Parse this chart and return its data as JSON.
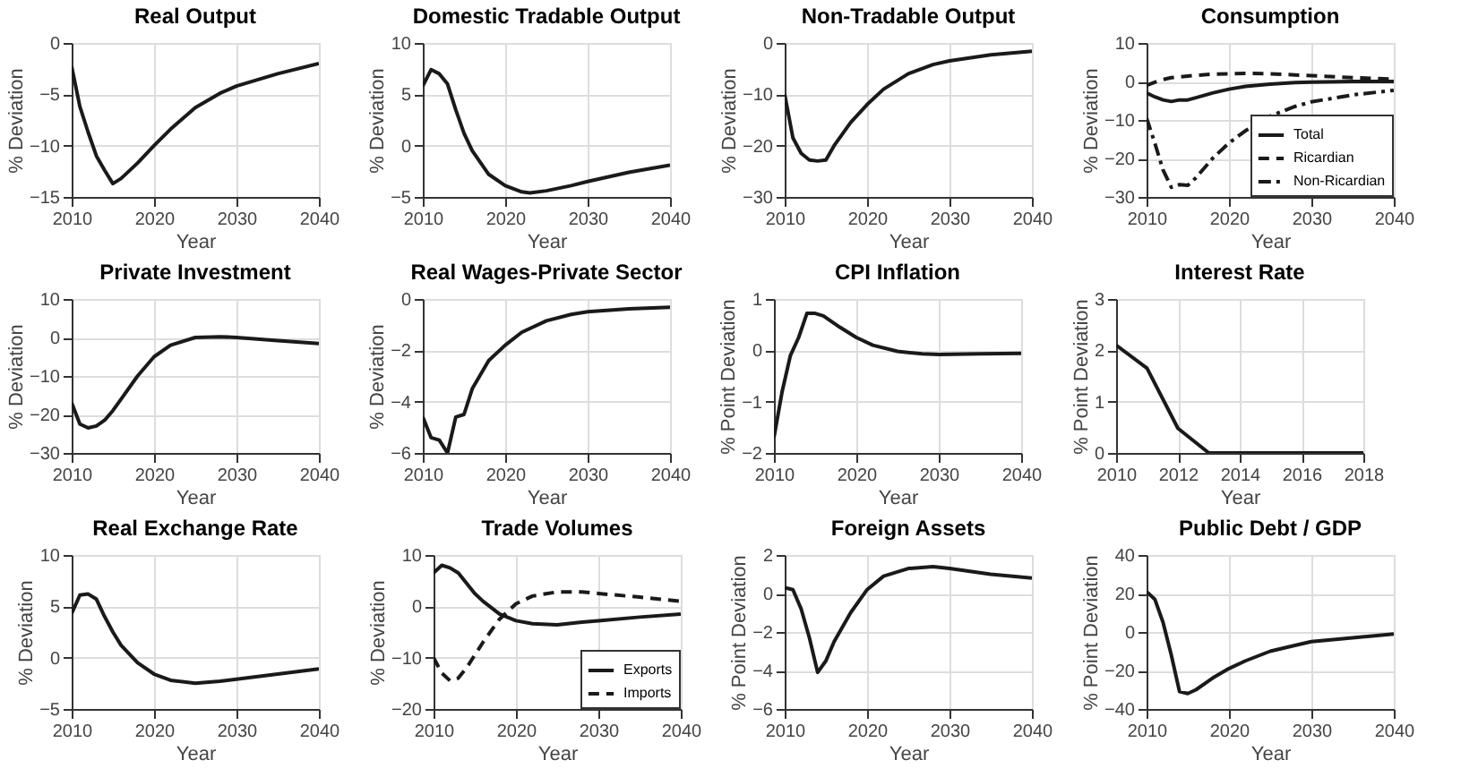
{
  "chart_data": [
    {
      "type": "line",
      "title": "Real Output",
      "xlabel": "Year",
      "ylabel": "% Deviation",
      "x": [
        2010,
        2011,
        2012,
        2013,
        2014,
        2015,
        2016,
        2018,
        2020,
        2022,
        2025,
        2028,
        2030,
        2035,
        2040
      ],
      "xlim": [
        2010,
        2040
      ],
      "xticks": [
        2010,
        2020,
        2030,
        2040
      ],
      "ylim": [
        -15,
        0
      ],
      "yticks": [
        -15,
        -10,
        -5,
        0
      ],
      "grid": true,
      "legend": false,
      "series": [
        {
          "color": "#1a1a1a",
          "line_style": "solid",
          "values": [
            -2.3,
            -6.2,
            -8.7,
            -11,
            -12.4,
            -13.7,
            -13.2,
            -11.7,
            -10,
            -8.4,
            -6.3,
            -4.9,
            -4.2,
            -3,
            -2
          ]
        }
      ]
    },
    {
      "type": "line",
      "title": "Domestic Tradable Output",
      "xlabel": "Year",
      "ylabel": "% Deviation",
      "x": [
        2010,
        2011,
        2012,
        2013,
        2014,
        2015,
        2016,
        2018,
        2020,
        2022,
        2023,
        2025,
        2028,
        2030,
        2035,
        2040
      ],
      "xlim": [
        2010,
        2040
      ],
      "xticks": [
        2010,
        2020,
        2030,
        2040
      ],
      "ylim": [
        -5,
        10
      ],
      "yticks": [
        -5,
        0,
        5,
        10
      ],
      "grid": true,
      "legend": false,
      "series": [
        {
          "color": "#1a1a1a",
          "line_style": "solid",
          "values": [
            5.8,
            7.4,
            7,
            6,
            3.5,
            1.2,
            -0.5,
            -2.8,
            -3.9,
            -4.5,
            -4.6,
            -4.4,
            -3.9,
            -3.5,
            -2.6,
            -1.9
          ]
        }
      ]
    },
    {
      "type": "line",
      "title": "Non-Tradable Output",
      "xlabel": "Year",
      "ylabel": "% Deviation",
      "x": [
        2010,
        2011,
        2012,
        2013,
        2014,
        2015,
        2016,
        2018,
        2020,
        2022,
        2025,
        2028,
        2030,
        2035,
        2040
      ],
      "xlim": [
        2010,
        2040
      ],
      "xticks": [
        2010,
        2020,
        2030,
        2040
      ],
      "ylim": [
        -30,
        0
      ],
      "yticks": [
        -30,
        -20,
        -10,
        0
      ],
      "grid": true,
      "legend": false,
      "series": [
        {
          "color": "#1a1a1a",
          "line_style": "solid",
          "values": [
            -10,
            -18.5,
            -21.5,
            -22.8,
            -23,
            -22.8,
            -20,
            -15.5,
            -12,
            -9,
            -6,
            -4.2,
            -3.5,
            -2.3,
            -1.6
          ]
        }
      ]
    },
    {
      "type": "line",
      "title": "Consumption",
      "xlabel": "Year",
      "ylabel": "% Deviation",
      "x": [
        2010,
        2011,
        2012,
        2013,
        2014,
        2015,
        2016,
        2018,
        2020,
        2022,
        2025,
        2028,
        2030,
        2035,
        2040
      ],
      "xlim": [
        2010,
        2040
      ],
      "xticks": [
        2010,
        2020,
        2030,
        2040
      ],
      "ylim": [
        -30,
        10
      ],
      "yticks": [
        -30,
        -20,
        -10,
        0,
        10
      ],
      "grid": true,
      "legend": "bottom right",
      "series": [
        {
          "name": "Total",
          "color": "#1a1a1a",
          "line_style": "solid",
          "values": [
            -3,
            -4,
            -4.8,
            -5.2,
            -4.8,
            -4.8,
            -4.2,
            -3,
            -2,
            -1.3,
            -0.7,
            -0.3,
            -0.2,
            0,
            0
          ]
        },
        {
          "name": "Ricardian",
          "color": "#1a1a1a",
          "line_style": "dashed",
          "values": [
            -1,
            -0.2,
            0.5,
            1,
            1.2,
            1.4,
            1.6,
            1.9,
            2,
            2.1,
            2,
            1.7,
            1.5,
            1,
            0.6
          ]
        },
        {
          "name": "Non-Ricardian",
          "color": "#1a1a1a",
          "line_style": "dashdot",
          "values": [
            -9.5,
            -16,
            -23,
            -27.5,
            -26.8,
            -27,
            -25,
            -20,
            -16,
            -12.8,
            -9,
            -6.5,
            -5.3,
            -3.5,
            -2.3
          ]
        }
      ]
    },
    {
      "type": "line",
      "title": "Private Investment",
      "xlabel": "Year",
      "ylabel": "% Deviation",
      "x": [
        2010,
        2011,
        2012,
        2013,
        2014,
        2015,
        2016,
        2018,
        2020,
        2022,
        2025,
        2028,
        2030,
        2035,
        2040
      ],
      "xlim": [
        2010,
        2040
      ],
      "xticks": [
        2010,
        2020,
        2030,
        2040
      ],
      "ylim": [
        -30,
        10
      ],
      "yticks": [
        -30,
        -20,
        -10,
        0,
        10
      ],
      "grid": true,
      "legend": false,
      "series": [
        {
          "color": "#1a1a1a",
          "line_style": "solid",
          "values": [
            -17,
            -22.5,
            -23.5,
            -23,
            -21.5,
            -19,
            -16,
            -10,
            -5,
            -2,
            0,
            0.2,
            0,
            -0.8,
            -1.6
          ]
        }
      ]
    },
    {
      "type": "line",
      "title": "Real Wages-Private Sector",
      "xlabel": "Year",
      "ylabel": "% Deviation",
      "x": [
        2010,
        2011,
        2012,
        2013,
        2014,
        2015,
        2016,
        2018,
        2020,
        2022,
        2025,
        2028,
        2030,
        2035,
        2040
      ],
      "xlim": [
        2010,
        2040
      ],
      "xticks": [
        2010,
        2020,
        2030,
        2040
      ],
      "ylim": [
        -6,
        0
      ],
      "yticks": [
        -6,
        -4,
        -2,
        0
      ],
      "grid": true,
      "legend": false,
      "series": [
        {
          "color": "#1a1a1a",
          "line_style": "solid",
          "values": [
            -4.6,
            -5.4,
            -5.5,
            -6,
            -4.6,
            -4.5,
            -3.5,
            -2.4,
            -1.8,
            -1.3,
            -0.85,
            -0.6,
            -0.5,
            -0.38,
            -0.32
          ]
        }
      ]
    },
    {
      "type": "line",
      "title": "CPI Inflation",
      "xlabel": "Year",
      "ylabel": "% Point Deviation",
      "x": [
        2010,
        2011,
        2012,
        2013,
        2014,
        2015,
        2016,
        2018,
        2020,
        2022,
        2025,
        2028,
        2030,
        2035,
        2040
      ],
      "xlim": [
        2010,
        2040
      ],
      "xticks": [
        2010,
        2020,
        2030,
        2040
      ],
      "ylim": [
        -2,
        1
      ],
      "yticks": [
        -2,
        -1,
        0,
        1
      ],
      "grid": true,
      "legend": false,
      "series": [
        {
          "color": "#1a1a1a",
          "line_style": "solid",
          "values": [
            -1.7,
            -0.8,
            -0.1,
            0.25,
            0.72,
            0.72,
            0.67,
            0.45,
            0.25,
            0.1,
            -0.02,
            -0.07,
            -0.08,
            -0.07,
            -0.06
          ]
        }
      ]
    },
    {
      "type": "line",
      "title": "Interest Rate",
      "xlabel": "Year",
      "ylabel": "% Point Deviation",
      "x": [
        2010,
        2011,
        2012,
        2013,
        2014,
        2016,
        2018
      ],
      "xlim": [
        2010,
        2018
      ],
      "xticks": [
        2010,
        2012,
        2014,
        2016,
        2018
      ],
      "ylim": [
        0,
        3
      ],
      "yticks": [
        0,
        1,
        2,
        3
      ],
      "grid": true,
      "legend": false,
      "series": [
        {
          "color": "#1a1a1a",
          "line_style": "solid",
          "values": [
            2.1,
            1.65,
            0.48,
            0,
            0,
            0,
            0
          ]
        }
      ]
    },
    {
      "type": "line",
      "title": "Real Exchange Rate",
      "xlabel": "Year",
      "ylabel": "% Deviation",
      "x": [
        2010,
        2011,
        2012,
        2013,
        2014,
        2015,
        2016,
        2018,
        2020,
        2022,
        2025,
        2028,
        2030,
        2035,
        2040
      ],
      "xlim": [
        2010,
        2040
      ],
      "xticks": [
        2010,
        2020,
        2030,
        2040
      ],
      "ylim": [
        -5,
        10
      ],
      "yticks": [
        -5,
        0,
        5,
        10
      ],
      "grid": true,
      "legend": false,
      "series": [
        {
          "color": "#1a1a1a",
          "line_style": "solid",
          "values": [
            4.3,
            6.1,
            6.2,
            5.7,
            4,
            2.5,
            1.2,
            -0.5,
            -1.6,
            -2.2,
            -2.5,
            -2.3,
            -2.1,
            -1.6,
            -1.1
          ]
        }
      ]
    },
    {
      "type": "line",
      "title": "Trade Volumes",
      "xlabel": "Year",
      "ylabel": "% Deviation",
      "x": [
        2010,
        2011,
        2012,
        2013,
        2014,
        2015,
        2016,
        2018,
        2020,
        2022,
        2025,
        2028,
        2030,
        2035,
        2040
      ],
      "xlim": [
        2010,
        2040
      ],
      "xticks": [
        2010,
        2020,
        2030,
        2040
      ],
      "ylim": [
        -20,
        10
      ],
      "yticks": [
        -20,
        -10,
        0,
        10
      ],
      "grid": true,
      "legend": "bottom right",
      "series": [
        {
          "name": "Exports",
          "color": "#1a1a1a",
          "line_style": "solid",
          "values": [
            6.5,
            8,
            7.5,
            6.5,
            4.5,
            2.5,
            1,
            -1.5,
            -2.8,
            -3.4,
            -3.6,
            -3.1,
            -2.8,
            -2.1,
            -1.5
          ]
        },
        {
          "name": "Imports",
          "color": "#1a1a1a",
          "line_style": "dashed",
          "values": [
            -10,
            -13,
            -14.5,
            -14,
            -12,
            -9.5,
            -7,
            -2.5,
            0.5,
            2,
            2.8,
            2.8,
            2.5,
            1.8,
            1
          ]
        }
      ]
    },
    {
      "type": "line",
      "title": "Foreign Assets",
      "xlabel": "Year",
      "ylabel": "% Point Deviation",
      "x": [
        2010,
        2011,
        2012,
        2013,
        2014,
        2015,
        2016,
        2018,
        2020,
        2022,
        2025,
        2028,
        2030,
        2035,
        2040
      ],
      "xlim": [
        2010,
        2040
      ],
      "xticks": [
        2010,
        2020,
        2030,
        2040
      ],
      "ylim": [
        -6,
        2
      ],
      "yticks": [
        -6,
        -4,
        -2,
        0,
        2
      ],
      "grid": true,
      "legend": false,
      "series": [
        {
          "color": "#1a1a1a",
          "line_style": "solid",
          "values": [
            0.3,
            0.2,
            -0.8,
            -2.3,
            -4.1,
            -3.5,
            -2.5,
            -1,
            0.2,
            0.9,
            1.3,
            1.4,
            1.3,
            1,
            0.8
          ]
        }
      ]
    },
    {
      "type": "line",
      "title": "Public Debt / GDP",
      "xlabel": "Year",
      "ylabel": "% Point Deviation",
      "x": [
        2010,
        2011,
        2012,
        2013,
        2014,
        2015,
        2016,
        2018,
        2020,
        2022,
        2025,
        2028,
        2030,
        2035,
        2040
      ],
      "xlim": [
        2010,
        2040
      ],
      "xticks": [
        2010,
        2020,
        2030,
        2040
      ],
      "ylim": [
        -40,
        40
      ],
      "yticks": [
        -40,
        -20,
        0,
        20,
        40
      ],
      "grid": true,
      "legend": false,
      "series": [
        {
          "color": "#1a1a1a",
          "line_style": "solid",
          "values": [
            21,
            17,
            5,
            -12,
            -31,
            -32,
            -30,
            -24,
            -19,
            -15,
            -10,
            -7,
            -5,
            -3,
            -1
          ]
        }
      ]
    }
  ]
}
